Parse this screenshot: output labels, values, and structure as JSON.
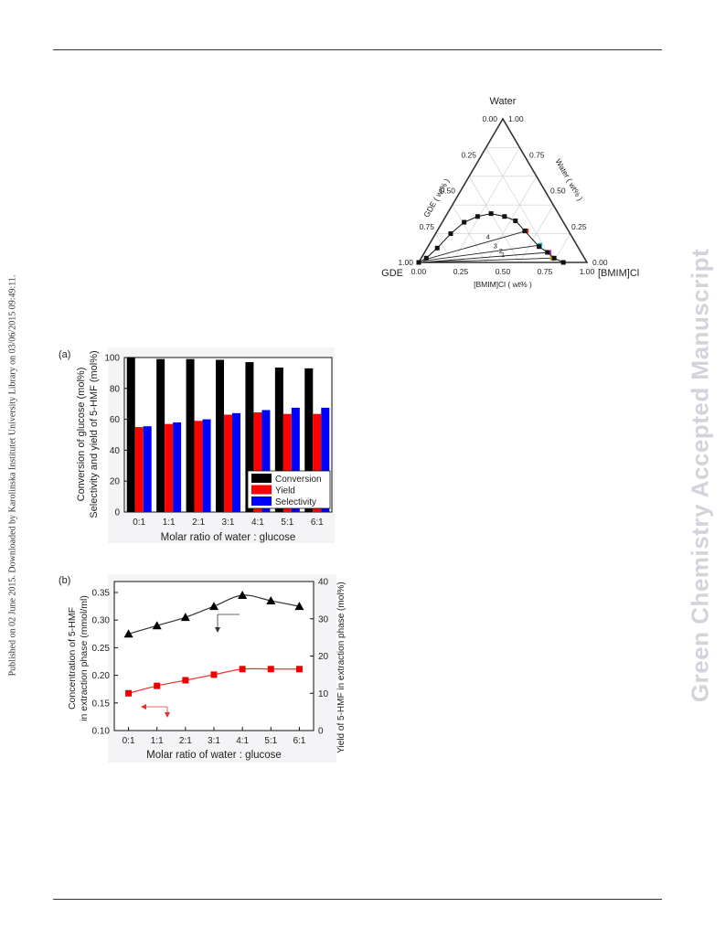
{
  "side_note": "Published on 02 June 2015. Downloaded by Karolinska Institutet University Library on 03/06/2015 09:49:11.",
  "watermark": "Green Chemistry Accepted Manuscript",
  "chart_data": [
    {
      "type": "ternary",
      "vertex_labels": {
        "top": "Water",
        "left": "GDE",
        "right": "[BMIM]Cl"
      },
      "axis_labels": {
        "left": "GDE ( wt% )",
        "right": "Water ( wt% )",
        "bottom": "[BMIM]Cl ( wt% )"
      },
      "ticks": [
        "0.00",
        "0.25",
        "0.50",
        "0.75",
        "1.00"
      ],
      "tie_line_labels": [
        "1",
        "2",
        "3",
        "4"
      ],
      "binodal": [
        {
          "water": 0.0,
          "bmimcl": 0.0
        },
        {
          "water": 0.03,
          "bmimcl": 0.03
        },
        {
          "water": 0.1,
          "bmimcl": 0.06
        },
        {
          "water": 0.2,
          "bmimcl": 0.09
        },
        {
          "water": 0.28,
          "bmimcl": 0.13
        },
        {
          "water": 0.32,
          "bmimcl": 0.19
        },
        {
          "water": 0.34,
          "bmimcl": 0.26
        },
        {
          "water": 0.32,
          "bmimcl": 0.35
        },
        {
          "water": 0.29,
          "bmimcl": 0.43
        },
        {
          "water": 0.22,
          "bmimcl": 0.52
        },
        {
          "water": 0.11,
          "bmimcl": 0.66
        },
        {
          "water": 0.07,
          "bmimcl": 0.73
        },
        {
          "water": 0.03,
          "bmimcl": 0.79
        },
        {
          "water": 0.0,
          "bmimcl": 0.86
        }
      ],
      "tie_lines": [
        {
          "label": "1",
          "a": {
            "water": 0.0,
            "bmimcl": 0.02
          },
          "b": {
            "water": 0.03,
            "bmimcl": 0.78
          },
          "color": "#c8a000"
        },
        {
          "label": "2",
          "a": {
            "water": 0.0,
            "bmimcl": 0.02
          },
          "b": {
            "water": 0.07,
            "bmimcl": 0.74
          },
          "color": "#d020d0"
        },
        {
          "label": "3",
          "a": {
            "water": 0.01,
            "bmimcl": 0.02
          },
          "b": {
            "water": 0.12,
            "bmimcl": 0.66
          },
          "color": "#00b8c8"
        },
        {
          "label": "4",
          "a": {
            "water": 0.02,
            "bmimcl": 0.03
          },
          "b": {
            "water": 0.22,
            "bmimcl": 0.53
          },
          "color": "#e03030"
        }
      ]
    },
    {
      "type": "bar",
      "panel_label": "(a)",
      "categories": [
        "0:1",
        "1:1",
        "2:1",
        "3:1",
        "4:1",
        "5:1",
        "6:1"
      ],
      "series": [
        {
          "name": "Conversion",
          "values": [
            100,
            99,
            99,
            98.5,
            97,
            93.5,
            93
          ],
          "color": "#000000"
        },
        {
          "name": "Yield",
          "values": [
            55,
            57,
            59,
            63,
            64.5,
            63.5,
            63.5
          ],
          "color": "#ff0000"
        },
        {
          "name": "Selectivity",
          "values": [
            55.5,
            58,
            60,
            64,
            66,
            67.5,
            67.5
          ],
          "color": "#0000ff"
        }
      ],
      "xlabel": "Molar ratio of water : glucose",
      "ylabel_lines": [
        "Conversion of glucose (mol%)",
        "Selectivity and yield of 5-HMF (mol%)"
      ],
      "ylim": [
        0,
        100
      ],
      "yticks": [
        0,
        20,
        40,
        60,
        80,
        100
      ],
      "legend_position": "bottom-right"
    },
    {
      "type": "scatter",
      "panel_label": "(b)",
      "categories": [
        "0:1",
        "1:1",
        "2:1",
        "3:1",
        "4:1",
        "5:1",
        "6:1"
      ],
      "series": [
        {
          "name": "Concentration",
          "axis": "left",
          "marker": "triangle",
          "color": "#000000",
          "values": [
            0.275,
            0.29,
            0.305,
            0.325,
            0.345,
            0.335,
            0.325
          ]
        },
        {
          "name": "Yield",
          "axis": "right",
          "marker": "square",
          "color": "#ee0000",
          "values": [
            10,
            12,
            13.5,
            15,
            16.5,
            16.5,
            16.5
          ]
        }
      ],
      "xlabel": "Molar ratio of water : glucose",
      "ylabel_left_lines": [
        "Concentration of 5-HMF",
        "in extraction phase  (mmol/ml)"
      ],
      "ylabel_right": "Yield of 5-HMF in extraction phase (mol%)",
      "ylim_left": [
        0.1,
        0.35
      ],
      "yticks_left": [
        "0.10",
        "0.15",
        "0.20",
        "0.25",
        "0.30",
        "0.35"
      ],
      "ylim_right": [
        0,
        40
      ],
      "yticks_right": [
        "0",
        "10",
        "20",
        "30",
        "40"
      ]
    }
  ]
}
